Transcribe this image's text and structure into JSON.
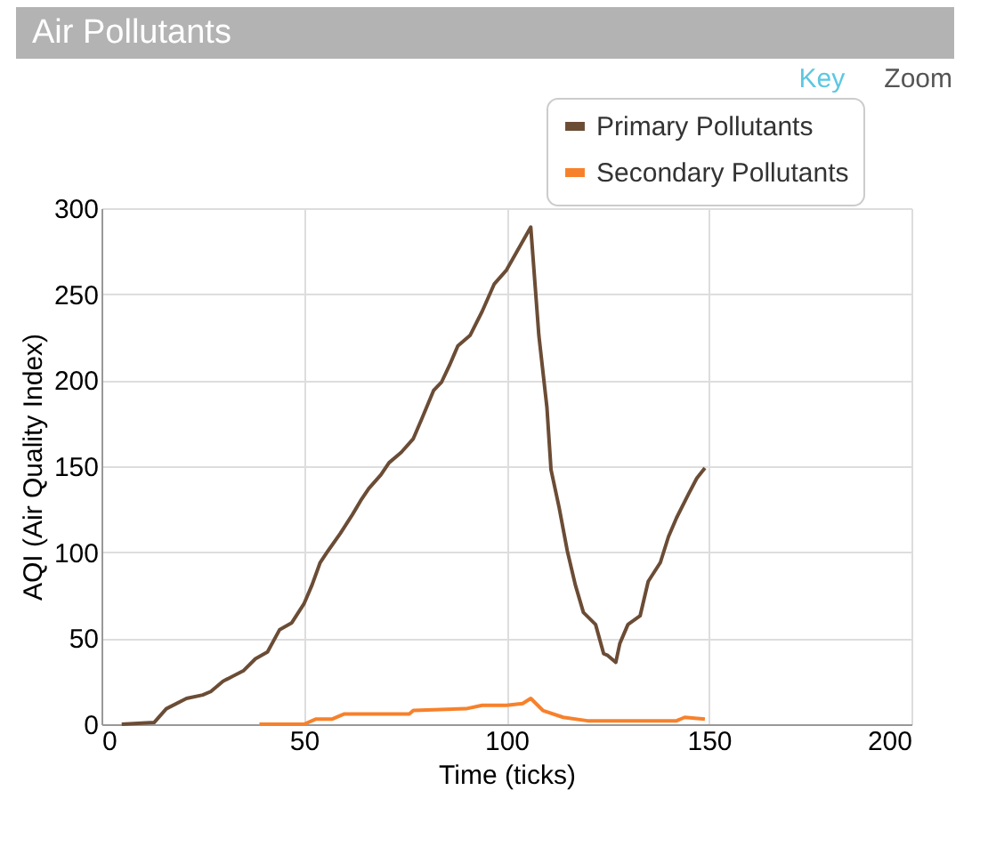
{
  "chart_data": {
    "type": "line",
    "title": "Air Pollutants",
    "xlabel": "Time (ticks)",
    "ylabel": "AQI (Air Quality Index)",
    "annotations": [
      "Key",
      "Zoom"
    ],
    "xlim": [
      0,
      200
    ],
    "xticks": [
      0,
      50,
      100,
      150,
      200
    ],
    "ylim": [
      0,
      300
    ],
    "yticks": [
      0,
      50,
      100,
      150,
      200,
      250,
      300
    ],
    "grid": true,
    "legend": "top right",
    "series": [
      {
        "name": "Primary Pollutants",
        "color": "#6b4c35",
        "x": [
          5,
          13,
          16,
          21,
          25,
          27,
          30,
          35,
          38,
          41,
          44,
          47,
          50,
          52,
          54,
          56,
          59,
          62,
          64,
          66,
          69,
          71,
          74,
          77,
          79,
          82,
          84,
          86,
          88,
          91,
          94,
          97,
          100,
          106,
          108,
          110,
          111,
          113,
          115,
          117,
          119,
          122,
          124,
          125,
          127,
          128,
          130,
          133,
          135,
          138,
          140,
          142,
          145,
          147,
          149
        ],
        "values": [
          0,
          1,
          9,
          15,
          17,
          19,
          25,
          31,
          38,
          42,
          55,
          59,
          70,
          81,
          94,
          101,
          111,
          122,
          130,
          137,
          145,
          152,
          158,
          166,
          177,
          194,
          199,
          209,
          220,
          226,
          240,
          256,
          264,
          289,
          226,
          184,
          148,
          126,
          101,
          81,
          65,
          58,
          41,
          40,
          36,
          47,
          58,
          63,
          83,
          94,
          109,
          120,
          134,
          143,
          149
        ]
      },
      {
        "name": "Secondary Pollutants",
        "color": "#f7812b",
        "x": [
          39,
          50,
          53,
          57,
          60,
          76,
          77,
          90,
          94,
          100,
          104,
          106,
          109,
          114,
          120,
          142,
          144,
          149
        ],
        "values": [
          0,
          0,
          3,
          3,
          6,
          6,
          8,
          9,
          11,
          11,
          12,
          15,
          8,
          4,
          2,
          2,
          4,
          3
        ]
      }
    ]
  }
}
